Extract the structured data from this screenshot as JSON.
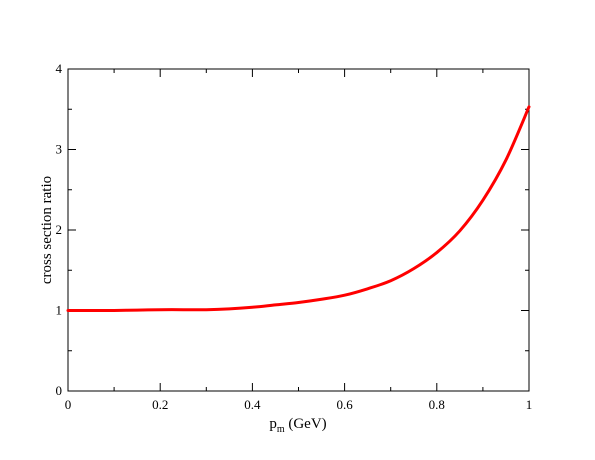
{
  "chart_data": {
    "type": "line",
    "title": "",
    "xlabel": {
      "main": "p",
      "sub": "m",
      "rest": " (GeV)"
    },
    "ylabel": "cross section ratio",
    "xlim": [
      0,
      1
    ],
    "ylim": [
      0,
      4
    ],
    "x_ticks": [
      0,
      0.2,
      0.4,
      0.6,
      0.8,
      1
    ],
    "x_tick_labels": [
      "0",
      "0.2",
      "0.4",
      "0.6",
      "0.8",
      "1"
    ],
    "y_ticks": [
      0,
      1,
      2,
      3,
      4
    ],
    "y_tick_labels": [
      "0",
      "1",
      "2",
      "3",
      "4"
    ],
    "x_minor_ticks": [
      0.1,
      0.3,
      0.5,
      0.7,
      0.9
    ],
    "y_minor_ticks": [
      0.5,
      1.5,
      2.5,
      3.5
    ],
    "grid": false,
    "series": [
      {
        "color": "#ff0000",
        "x": [
          0.0,
          0.05,
          0.1,
          0.15,
          0.2,
          0.25,
          0.3,
          0.35,
          0.4,
          0.45,
          0.5,
          0.55,
          0.6,
          0.65,
          0.7,
          0.75,
          0.8,
          0.85,
          0.9,
          0.95,
          1.0
        ],
        "y": [
          1.0,
          1.0,
          1.0,
          1.005,
          1.01,
          1.01,
          1.01,
          1.02,
          1.04,
          1.07,
          1.1,
          1.14,
          1.19,
          1.27,
          1.37,
          1.52,
          1.72,
          1.99,
          2.37,
          2.87,
          3.53
        ]
      }
    ]
  }
}
